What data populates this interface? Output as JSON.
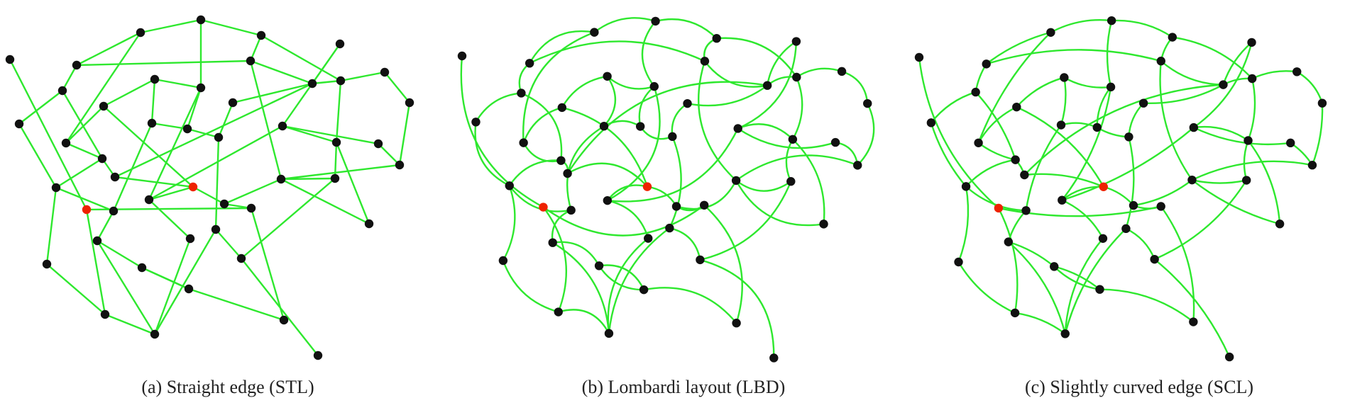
{
  "figure": {
    "panels": [
      {
        "caption": "(a)  Straight edge (STL)",
        "style": "straight"
      },
      {
        "caption": "(b)  Lombardi layout (LBD)",
        "style": "lombardi"
      },
      {
        "caption": "(c)  Slightly curved edge (SCL)",
        "style": "slight"
      }
    ],
    "colors": {
      "edge": "#2ee82e",
      "node": "#111111",
      "highlight": "#ee2200"
    }
  }
}
